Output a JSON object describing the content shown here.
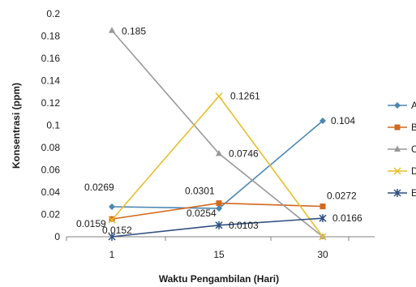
{
  "chart_data": {
    "type": "line",
    "xlabel": "Waktu Pengambilan (Hari)",
    "ylabel": "Konsentrasi (ppm)",
    "categories": [
      "1",
      "15",
      "30"
    ],
    "ylim": [
      0,
      0.2
    ],
    "yticks": [
      "0",
      "0.02",
      "0.04",
      "0.06",
      "0.08",
      "0.1",
      "0.12",
      "0.14",
      "0.16",
      "0.18",
      "0.2"
    ],
    "grid": false,
    "legend": "right",
    "series": [
      {
        "name": "A",
        "color": "#4A86B0",
        "marker": "diamond",
        "values": [
          0.0269,
          0.0254,
          0.104
        ],
        "labels": [
          "0.0269",
          "0.0254",
          "0.104"
        ]
      },
      {
        "name": "B",
        "color": "#D2691E",
        "marker": "square",
        "values": [
          0.0159,
          0.0301,
          0.0272
        ],
        "labels": [
          "0.0159",
          "0.0301",
          "0.0272"
        ]
      },
      {
        "name": "C",
        "color": "#999999",
        "marker": "triangle",
        "values": [
          0.185,
          0.0746,
          0
        ],
        "labels": [
          "0.185",
          "0.0746",
          ""
        ]
      },
      {
        "name": "D",
        "color": "#E8BE2C",
        "marker": "x",
        "values": [
          0.0152,
          0.1261,
          0
        ],
        "labels": [
          "0.0152",
          "0.1261",
          ""
        ]
      },
      {
        "name": "E",
        "color": "#2F4F7F",
        "marker": "star",
        "values": [
          0,
          0.0103,
          0.0166
        ],
        "labels": [
          "",
          "0.0103",
          "0.0166"
        ]
      }
    ]
  }
}
